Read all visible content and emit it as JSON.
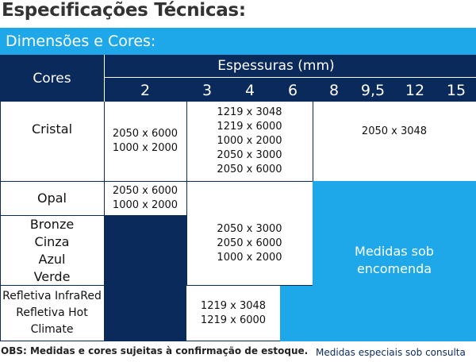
{
  "title": "Especificações Técnicas:",
  "section_title": "Dimensões e Cores:",
  "header": {
    "cores_label": "Cores",
    "espessuras_label": "Espessuras (mm)",
    "thicknesses": [
      "2",
      "3",
      "4",
      "6",
      "8",
      "9,5",
      "12",
      "15"
    ]
  },
  "rows": {
    "cristal": {
      "label": "Cristal",
      "col2": [
        "2050 x 6000",
        "1000 x 2000"
      ],
      "col3_6": [
        "1219 x 3048",
        "1219 x 6000",
        "1000 x 2000",
        "2050 x 3000",
        "2050 x 6000"
      ],
      "col8_15": "2050 x 3048"
    },
    "opal": {
      "label": "Opal",
      "col2": [
        "2050 x 6000",
        "1000 x 2000"
      ]
    },
    "colors": {
      "labels": [
        "Bronze",
        "Cinza",
        "Azul",
        "Verde"
      ],
      "col3_6": [
        "2050 x 3000",
        "2050 x 6000",
        "1000 x 2000"
      ]
    },
    "refletiva": {
      "labels": [
        "Refletiva InfraRed",
        "Refletiva Hot",
        "Climate"
      ],
      "col3_4": [
        "1219 x 3048",
        "1219 x 6000"
      ]
    }
  },
  "medidas_sob_encomenda": [
    "Medidas sob",
    "encomenda"
  ],
  "footer": {
    "obs": "OBS: Medidas e cores sujeitas à confirmação de estoque.",
    "especiais": "Medidas especiais sob consulta"
  },
  "colors": {
    "navy": "#0b2a5c",
    "blue": "#1ea8e9",
    "text": "#333333"
  }
}
